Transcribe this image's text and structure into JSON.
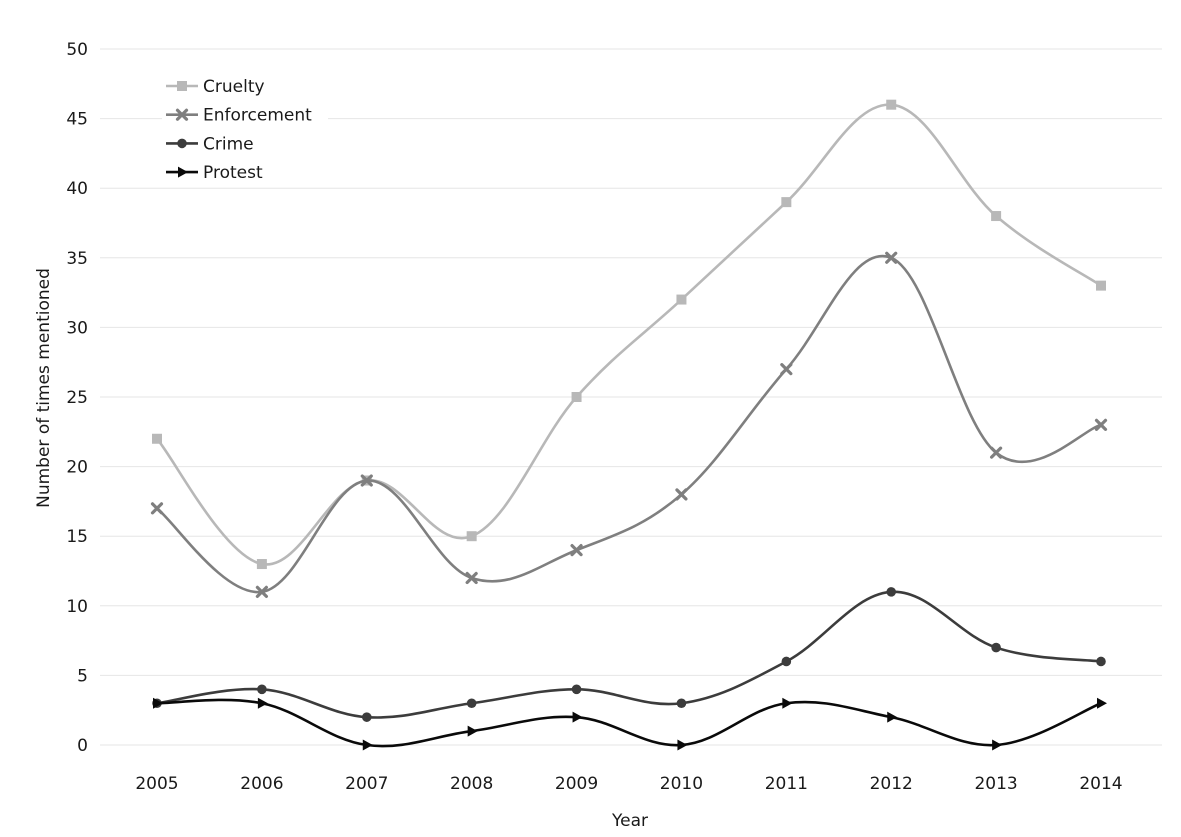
{
  "chart_data": {
    "type": "line",
    "xlabel": "Year",
    "ylabel": "Number of times mentioned",
    "ylim": [
      0,
      50
    ],
    "yticks": [
      0,
      5,
      10,
      15,
      20,
      25,
      30,
      35,
      40,
      45,
      50
    ],
    "categories": [
      "2005",
      "2006",
      "2007",
      "2008",
      "2009",
      "2010",
      "2011",
      "2012",
      "2013",
      "2014"
    ],
    "grid": "horizontal",
    "legend_position": "top-left",
    "series": [
      {
        "name": "Cruelty",
        "color": "#b8b8b8",
        "marker": "square",
        "values": [
          22,
          13,
          19,
          15,
          25,
          32,
          39,
          46,
          38,
          33
        ]
      },
      {
        "name": "Enforcement",
        "color": "#7f7f7f",
        "marker": "x",
        "values": [
          17,
          11,
          19,
          12,
          14,
          18,
          27,
          35,
          21,
          23
        ]
      },
      {
        "name": "Crime",
        "color": "#3c3c3c",
        "marker": "circle",
        "values": [
          3,
          4,
          2,
          3,
          4,
          3,
          6,
          11,
          7,
          6
        ]
      },
      {
        "name": "Protest",
        "color": "#0a0a0a",
        "marker": "triangle-right",
        "values": [
          3,
          3,
          0,
          1,
          2,
          0,
          3,
          2,
          0,
          3
        ]
      }
    ]
  }
}
